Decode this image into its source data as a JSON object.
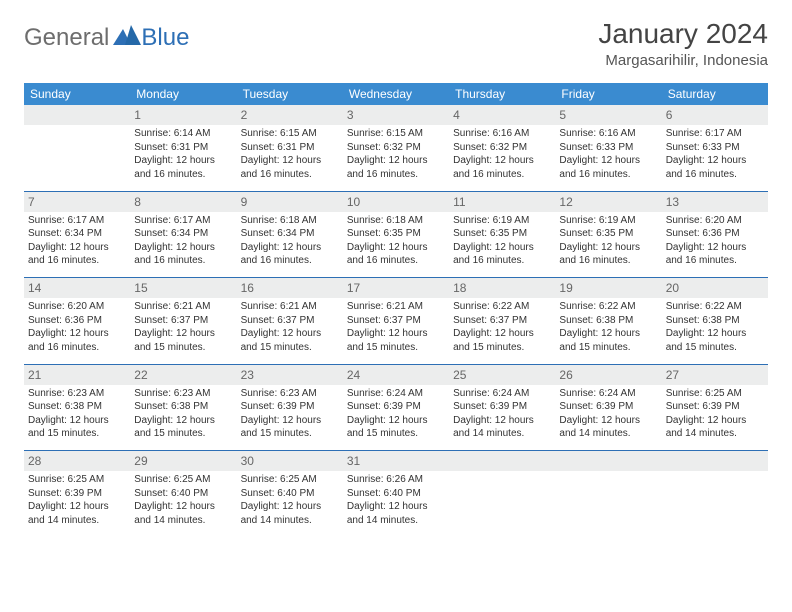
{
  "logo": {
    "text1": "General",
    "text2": "Blue"
  },
  "header": {
    "month": "January 2024",
    "location": "Margasarihilir, Indonesia"
  },
  "colors": {
    "header_bg": "#3a8bd0",
    "header_text": "#ffffff",
    "rule": "#2d6fb5",
    "dayband": "#eceded"
  },
  "weekdays": [
    "Sunday",
    "Monday",
    "Tuesday",
    "Wednesday",
    "Thursday",
    "Friday",
    "Saturday"
  ],
  "start_offset": 1,
  "days": [
    {
      "n": "1",
      "sunrise": "6:14 AM",
      "sunset": "6:31 PM",
      "dh": "12",
      "dm": "16"
    },
    {
      "n": "2",
      "sunrise": "6:15 AM",
      "sunset": "6:31 PM",
      "dh": "12",
      "dm": "16"
    },
    {
      "n": "3",
      "sunrise": "6:15 AM",
      "sunset": "6:32 PM",
      "dh": "12",
      "dm": "16"
    },
    {
      "n": "4",
      "sunrise": "6:16 AM",
      "sunset": "6:32 PM",
      "dh": "12",
      "dm": "16"
    },
    {
      "n": "5",
      "sunrise": "6:16 AM",
      "sunset": "6:33 PM",
      "dh": "12",
      "dm": "16"
    },
    {
      "n": "6",
      "sunrise": "6:17 AM",
      "sunset": "6:33 PM",
      "dh": "12",
      "dm": "16"
    },
    {
      "n": "7",
      "sunrise": "6:17 AM",
      "sunset": "6:34 PM",
      "dh": "12",
      "dm": "16"
    },
    {
      "n": "8",
      "sunrise": "6:17 AM",
      "sunset": "6:34 PM",
      "dh": "12",
      "dm": "16"
    },
    {
      "n": "9",
      "sunrise": "6:18 AM",
      "sunset": "6:34 PM",
      "dh": "12",
      "dm": "16"
    },
    {
      "n": "10",
      "sunrise": "6:18 AM",
      "sunset": "6:35 PM",
      "dh": "12",
      "dm": "16"
    },
    {
      "n": "11",
      "sunrise": "6:19 AM",
      "sunset": "6:35 PM",
      "dh": "12",
      "dm": "16"
    },
    {
      "n": "12",
      "sunrise": "6:19 AM",
      "sunset": "6:35 PM",
      "dh": "12",
      "dm": "16"
    },
    {
      "n": "13",
      "sunrise": "6:20 AM",
      "sunset": "6:36 PM",
      "dh": "12",
      "dm": "16"
    },
    {
      "n": "14",
      "sunrise": "6:20 AM",
      "sunset": "6:36 PM",
      "dh": "12",
      "dm": "16"
    },
    {
      "n": "15",
      "sunrise": "6:21 AM",
      "sunset": "6:37 PM",
      "dh": "12",
      "dm": "15"
    },
    {
      "n": "16",
      "sunrise": "6:21 AM",
      "sunset": "6:37 PM",
      "dh": "12",
      "dm": "15"
    },
    {
      "n": "17",
      "sunrise": "6:21 AM",
      "sunset": "6:37 PM",
      "dh": "12",
      "dm": "15"
    },
    {
      "n": "18",
      "sunrise": "6:22 AM",
      "sunset": "6:37 PM",
      "dh": "12",
      "dm": "15"
    },
    {
      "n": "19",
      "sunrise": "6:22 AM",
      "sunset": "6:38 PM",
      "dh": "12",
      "dm": "15"
    },
    {
      "n": "20",
      "sunrise": "6:22 AM",
      "sunset": "6:38 PM",
      "dh": "12",
      "dm": "15"
    },
    {
      "n": "21",
      "sunrise": "6:23 AM",
      "sunset": "6:38 PM",
      "dh": "12",
      "dm": "15"
    },
    {
      "n": "22",
      "sunrise": "6:23 AM",
      "sunset": "6:38 PM",
      "dh": "12",
      "dm": "15"
    },
    {
      "n": "23",
      "sunrise": "6:23 AM",
      "sunset": "6:39 PM",
      "dh": "12",
      "dm": "15"
    },
    {
      "n": "24",
      "sunrise": "6:24 AM",
      "sunset": "6:39 PM",
      "dh": "12",
      "dm": "15"
    },
    {
      "n": "25",
      "sunrise": "6:24 AM",
      "sunset": "6:39 PM",
      "dh": "12",
      "dm": "14"
    },
    {
      "n": "26",
      "sunrise": "6:24 AM",
      "sunset": "6:39 PM",
      "dh": "12",
      "dm": "14"
    },
    {
      "n": "27",
      "sunrise": "6:25 AM",
      "sunset": "6:39 PM",
      "dh": "12",
      "dm": "14"
    },
    {
      "n": "28",
      "sunrise": "6:25 AM",
      "sunset": "6:39 PM",
      "dh": "12",
      "dm": "14"
    },
    {
      "n": "29",
      "sunrise": "6:25 AM",
      "sunset": "6:40 PM",
      "dh": "12",
      "dm": "14"
    },
    {
      "n": "30",
      "sunrise": "6:25 AM",
      "sunset": "6:40 PM",
      "dh": "12",
      "dm": "14"
    },
    {
      "n": "31",
      "sunrise": "6:26 AM",
      "sunset": "6:40 PM",
      "dh": "12",
      "dm": "14"
    }
  ],
  "labels": {
    "sunrise": "Sunrise: ",
    "sunset": "Sunset: ",
    "daylight_pre": "Daylight: ",
    "hours": " hours and ",
    "minutes": " minutes."
  }
}
